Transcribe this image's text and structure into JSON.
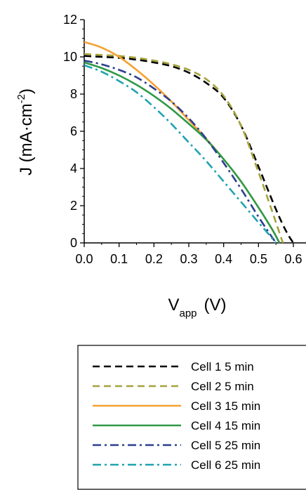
{
  "chart_data": {
    "type": "line",
    "xlabel": {
      "main": "V",
      "sub": "app",
      "unit": "(V)"
    },
    "ylabel": {
      "main": "J (mA·cm",
      "sup": "-2",
      "end": ")"
    },
    "xlim": [
      0.0,
      0.6
    ],
    "ylim": [
      0,
      12
    ],
    "xticks": [
      "0.0",
      "0.1",
      "0.2",
      "0.3",
      "0.4",
      "0.5",
      "0.6"
    ],
    "yticks": [
      "0",
      "2",
      "4",
      "6",
      "8",
      "10",
      "12"
    ],
    "grid": false,
    "legend_position": "bottom",
    "series": [
      {
        "name": "Cell 1 5 min",
        "color": "#000000",
        "dash": "dash",
        "x": [
          0,
          0.05,
          0.1,
          0.15,
          0.2,
          0.25,
          0.3,
          0.35,
          0.4,
          0.45,
          0.5,
          0.55,
          0.58,
          0.6
        ],
        "y": [
          10.05,
          10.0,
          9.95,
          9.85,
          9.7,
          9.5,
          9.15,
          8.6,
          7.8,
          6.3,
          4.1,
          1.8,
          0.6,
          0
        ]
      },
      {
        "name": "Cell 2 5 min",
        "color": "#a5a23a",
        "dash": "dash",
        "x": [
          0,
          0.05,
          0.1,
          0.15,
          0.2,
          0.25,
          0.3,
          0.35,
          0.4,
          0.45,
          0.5,
          0.53,
          0.55,
          0.57
        ],
        "y": [
          10.15,
          10.1,
          10.05,
          9.95,
          9.8,
          9.6,
          9.3,
          8.8,
          7.9,
          6.3,
          3.8,
          2.2,
          1.1,
          0
        ]
      },
      {
        "name": "Cell 3 15 min",
        "color": "#f5a031",
        "dash": "solid",
        "x": [
          0,
          0.05,
          0.1,
          0.15,
          0.2,
          0.25,
          0.3,
          0.35,
          0.4,
          0.45,
          0.5,
          0.54,
          0.56
        ],
        "y": [
          10.8,
          10.5,
          10.0,
          9.3,
          8.5,
          7.6,
          6.6,
          5.6,
          4.5,
          3.3,
          1.9,
          0.7,
          0
        ]
      },
      {
        "name": "Cell 4 15 min",
        "color": "#2e9a48",
        "dash": "solid",
        "x": [
          0,
          0.05,
          0.1,
          0.15,
          0.2,
          0.25,
          0.3,
          0.35,
          0.4,
          0.45,
          0.5,
          0.54,
          0.56
        ],
        "y": [
          9.7,
          9.4,
          9.0,
          8.5,
          7.9,
          7.2,
          6.4,
          5.55,
          4.5,
          3.3,
          1.9,
          0.7,
          0
        ]
      },
      {
        "name": "Cell 5 25 min",
        "color": "#2c3e8f",
        "dash": "dashdot",
        "x": [
          0,
          0.05,
          0.1,
          0.15,
          0.2,
          0.25,
          0.3,
          0.35,
          0.4,
          0.45,
          0.5,
          0.53,
          0.55
        ],
        "y": [
          9.8,
          9.6,
          9.3,
          8.9,
          8.3,
          7.6,
          6.7,
          5.6,
          4.3,
          2.9,
          1.4,
          0.55,
          0
        ]
      },
      {
        "name": "Cell 6 25 min",
        "color": "#1fa3b0",
        "dash": "dashdot",
        "x": [
          0,
          0.05,
          0.1,
          0.15,
          0.2,
          0.25,
          0.3,
          0.35,
          0.4,
          0.45,
          0.5,
          0.53,
          0.55
        ],
        "y": [
          9.55,
          9.2,
          8.7,
          8.1,
          7.3,
          6.4,
          5.4,
          4.4,
          3.3,
          2.2,
          1.1,
          0.45,
          0
        ]
      }
    ]
  }
}
